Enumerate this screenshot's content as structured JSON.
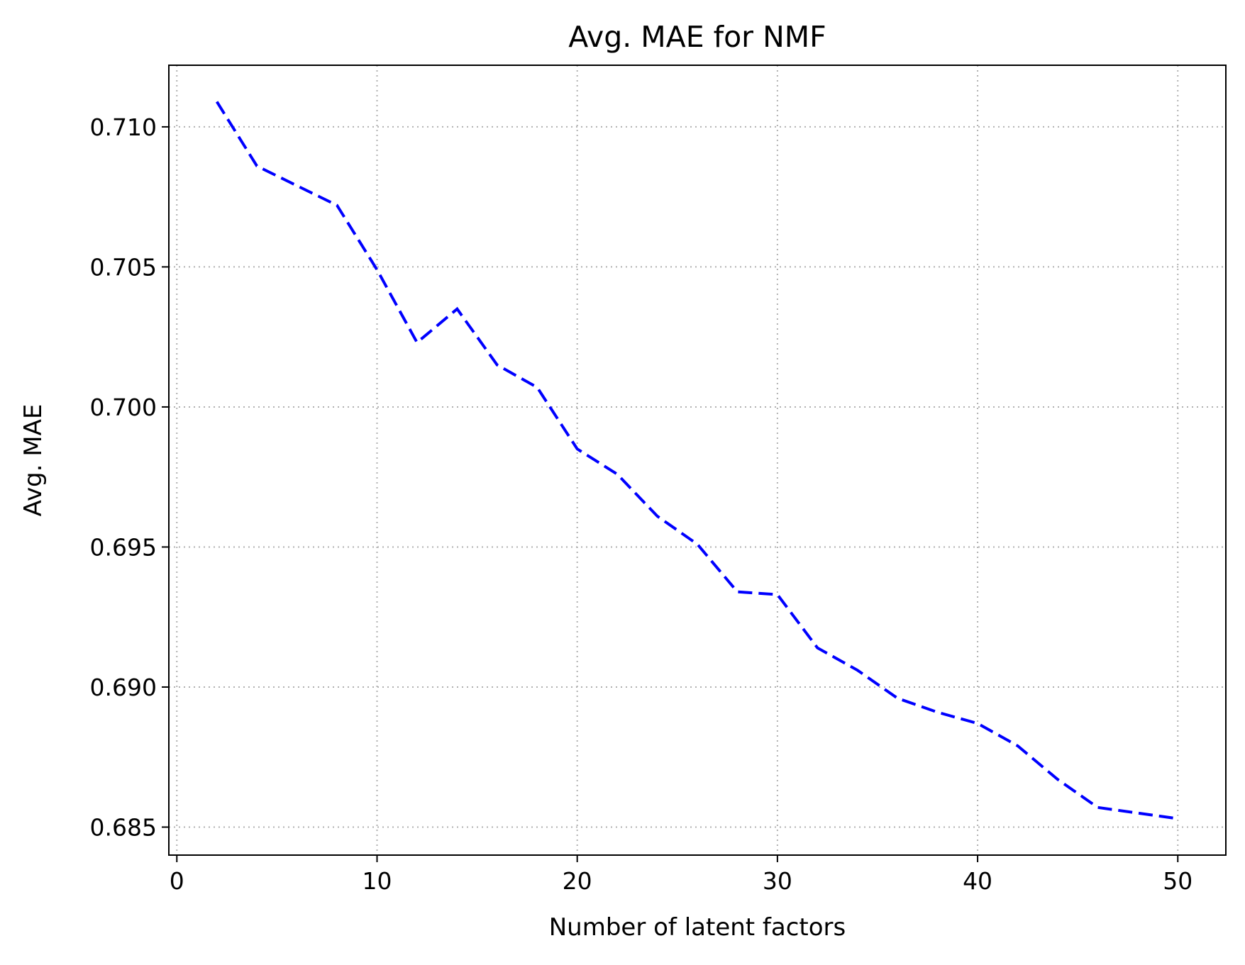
{
  "chart_data": {
    "type": "line",
    "title": "Avg. MAE for NMF",
    "xlabel": "Number of latent factors",
    "ylabel": "Avg. MAE",
    "xlim": [
      -0.4,
      52.4
    ],
    "ylim": [
      0.684,
      0.7122
    ],
    "xticks": [
      0,
      10,
      20,
      30,
      40,
      50
    ],
    "xtick_labels": [
      "0",
      "10",
      "20",
      "30",
      "40",
      "50"
    ],
    "yticks": [
      0.685,
      0.69,
      0.695,
      0.7,
      0.705,
      0.71
    ],
    "ytick_labels": [
      "0.685",
      "0.690",
      "0.695",
      "0.700",
      "0.705",
      "0.710"
    ],
    "grid": true,
    "series": [
      {
        "color": "#0000ff",
        "line_style": "dashed",
        "x": [
          2,
          4,
          6,
          8,
          10,
          12,
          14,
          16,
          18,
          20,
          22,
          24,
          26,
          28,
          30,
          32,
          34,
          36,
          38,
          40,
          42,
          44,
          46,
          48,
          50
        ],
        "y": [
          0.7109,
          0.7086,
          0.7079,
          0.7072,
          0.7049,
          0.7023,
          0.7035,
          0.7015,
          0.7007,
          0.6985,
          0.6976,
          0.6961,
          0.6951,
          0.6934,
          0.6933,
          0.6914,
          0.6906,
          0.6896,
          0.6891,
          0.6887,
          0.6879,
          0.6867,
          0.6857,
          0.6855,
          0.6853
        ]
      }
    ]
  }
}
